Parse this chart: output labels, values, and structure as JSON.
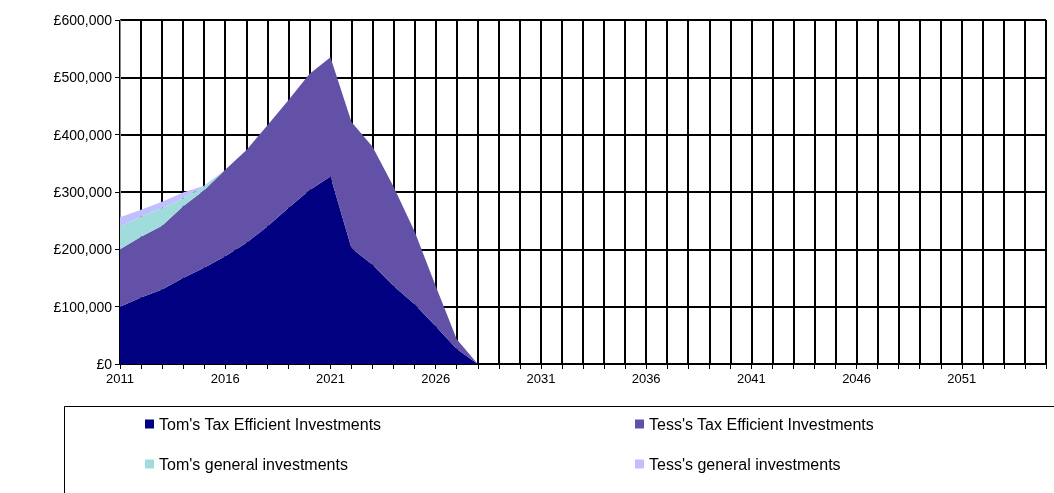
{
  "chart_data": {
    "type": "area",
    "stacked": true,
    "grid": true,
    "legend": "bottom",
    "categories": [
      "2011",
      null,
      null,
      null,
      null,
      "2016",
      null,
      null,
      null,
      null,
      "2021",
      null,
      null,
      null,
      null,
      "2026",
      null,
      null,
      null,
      null,
      "2031",
      null,
      null,
      null,
      null,
      "2036",
      null,
      null,
      null,
      null,
      "2041",
      null,
      null,
      null,
      null,
      "2046",
      null,
      null,
      null,
      null,
      "2051",
      null,
      null,
      null,
      null
    ],
    "ylim": [
      0,
      600000
    ],
    "yticks": [
      {
        "value": 0,
        "label": "£0"
      },
      {
        "value": 100000,
        "label": "£100,000"
      },
      {
        "value": 200000,
        "label": "£200,000"
      },
      {
        "value": 300000,
        "label": "£300,000"
      },
      {
        "value": 400000,
        "label": "£400,000"
      },
      {
        "value": 500000,
        "label": "£500,000"
      },
      {
        "value": 600000,
        "label": "£600,000"
      }
    ],
    "series": [
      {
        "name": "Tom's Tax Efficient Investments",
        "color": "#000080",
        "values": [
          100000,
          116000,
          130000,
          150000,
          168000,
          188000,
          211000,
          240000,
          272000,
          303000,
          327000,
          202000,
          173000,
          136000,
          104000,
          66000,
          26000,
          0,
          null,
          null,
          null,
          null,
          null,
          null,
          null,
          null,
          null,
          null,
          null,
          null,
          null,
          null,
          null,
          null,
          null,
          null,
          null,
          null,
          null,
          null,
          null,
          null,
          null,
          null,
          null
        ]
      },
      {
        "name": "Tess's Tax Efficient Investments",
        "color": "#6351a8",
        "values": [
          100000,
          106000,
          111000,
          125000,
          135000,
          151000,
          162000,
          176000,
          188000,
          203000,
          208000,
          220000,
          206000,
          173000,
          127000,
          70000,
          17000,
          0,
          null,
          null,
          null,
          null,
          null,
          null,
          null,
          null,
          null,
          null,
          null,
          null,
          null,
          null,
          null,
          null,
          null,
          null,
          null,
          null,
          null,
          null,
          null,
          null,
          null,
          null,
          null
        ]
      },
      {
        "name": "Tom's general investments",
        "color": "#a0dcdc",
        "values": [
          40000,
          35000,
          31000,
          14000,
          6000,
          0,
          null,
          null,
          null,
          null,
          null,
          null,
          null,
          null,
          null,
          null,
          null,
          null,
          null,
          null,
          null,
          null,
          null,
          null,
          null,
          null,
          null,
          null,
          null,
          null,
          null,
          null,
          null,
          null,
          null,
          null,
          null,
          null,
          null,
          null,
          null,
          null,
          null,
          null,
          null
        ]
      },
      {
        "name": "Tess's general investments",
        "color": "#c0c0ff",
        "values": [
          16000,
          12000,
          11000,
          10000,
          2000,
          0,
          null,
          null,
          null,
          null,
          null,
          null,
          null,
          null,
          null,
          null,
          null,
          null,
          null,
          null,
          null,
          null,
          null,
          null,
          null,
          null,
          null,
          null,
          null,
          null,
          null,
          null,
          null,
          null,
          null,
          null,
          null,
          null,
          null,
          null,
          null,
          null,
          null,
          null,
          null
        ]
      }
    ]
  }
}
